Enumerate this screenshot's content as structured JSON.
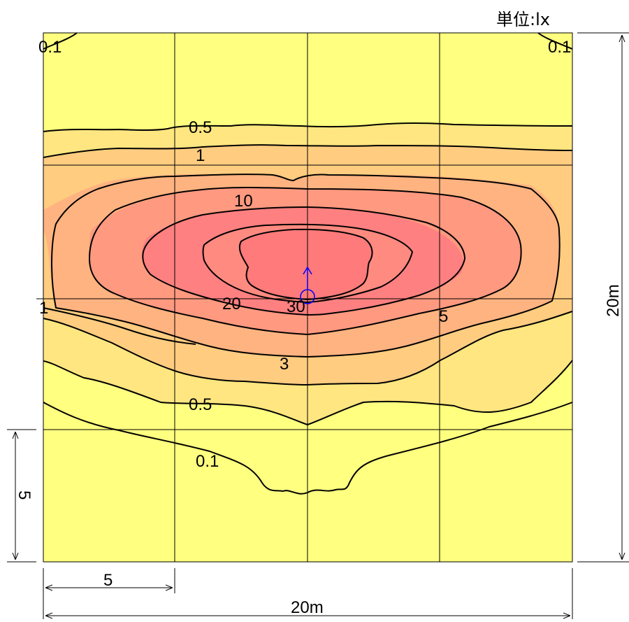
{
  "unit_label": "単位:lx",
  "colors": {
    "band_0": "#ffff80",
    "band_1": "#ffe680",
    "band_2": "#ffcc80",
    "band_3": "#ffb380",
    "band_4": "#ff9980",
    "band_5": "#ff8080",
    "line": "#000000",
    "luminaire": "#0000ff"
  },
  "contour_labels": {
    "c01_tl": "0.1",
    "c01_tr": "0.1",
    "c05_top": "0.5",
    "c1_top": "1",
    "c10": "10",
    "c20": "20",
    "c30": "30",
    "c5": "5",
    "c3": "3",
    "c05_bottom": "0.5",
    "c01_bottom": "0.1",
    "c1_left": "1"
  },
  "dimensions": {
    "right_height": "20m",
    "bottom_width": "20m",
    "bottom_grid": "5",
    "left_grid": "5"
  },
  "luminaire_icon": "luminaire-position-icon"
}
